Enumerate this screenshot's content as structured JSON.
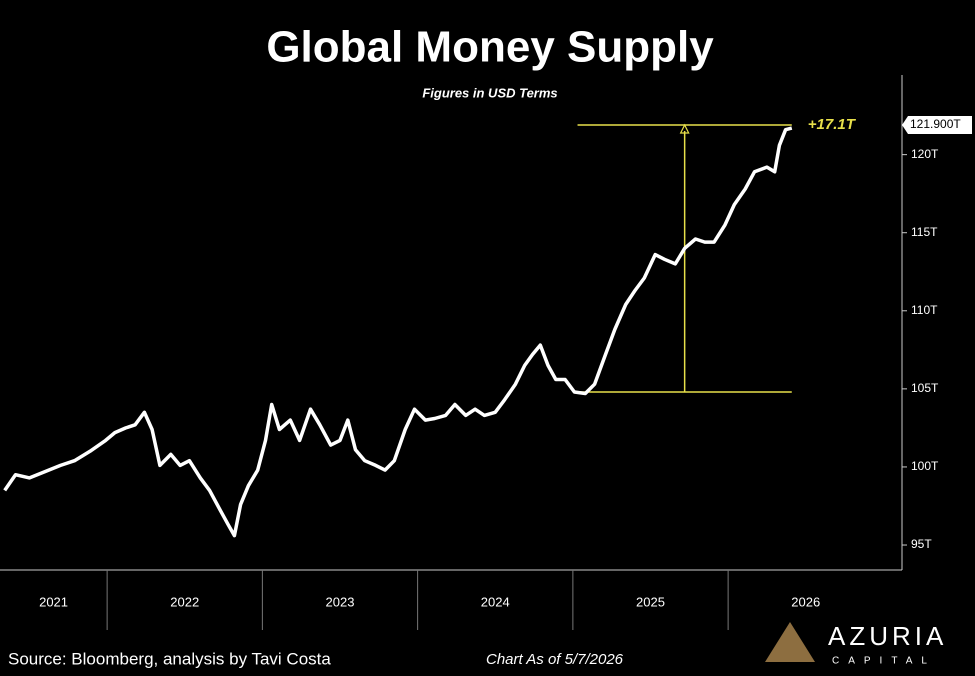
{
  "chart_data": {
    "type": "line",
    "title": "Global Money Supply",
    "subtitle": "Figures in USD Terms",
    "source": "Source: Bloomberg, analysis by Tavi Costa",
    "as_of": "Chart As of 5/7/2026",
    "brand": {
      "name": "AZURIA",
      "sub": "CAPITAL"
    },
    "x": [
      2021.34,
      2021.41,
      2021.5,
      2021.6,
      2021.7,
      2021.79,
      2021.89,
      2021.99,
      2022.05,
      2022.12,
      2022.18,
      2022.24,
      2022.29,
      2022.34,
      2022.41,
      2022.47,
      2022.53,
      2022.6,
      2022.66,
      2022.73,
      2022.78,
      2022.82,
      2022.86,
      2022.91,
      2022.97,
      2023.02,
      2023.06,
      2023.11,
      2023.18,
      2023.24,
      2023.31,
      2023.37,
      2023.44,
      2023.5,
      2023.55,
      2023.6,
      2023.66,
      2023.73,
      2023.79,
      2023.85,
      2023.92,
      2023.98,
      2024.05,
      2024.11,
      2024.18,
      2024.24,
      2024.31,
      2024.37,
      2024.43,
      2024.5,
      2024.56,
      2024.63,
      2024.69,
      2024.74,
      2024.79,
      2024.84,
      2024.89,
      2024.95,
      2025.01,
      2025.08,
      2025.14,
      2025.21,
      2025.27,
      2025.34,
      2025.4,
      2025.46,
      2025.53,
      2025.59,
      2025.66,
      2025.72,
      2025.79,
      2025.85,
      2025.91,
      2025.98,
      2026.04,
      2026.11,
      2026.17,
      2026.25,
      2026.3,
      2026.33,
      2026.37,
      2026.41
    ],
    "series": [
      {
        "color": "#ffffff",
        "values": [
          98.5,
          99.5,
          99.3,
          99.7,
          100.1,
          100.4,
          101.0,
          101.7,
          102.2,
          102.5,
          102.7,
          103.5,
          102.4,
          100.1,
          100.8,
          100.1,
          100.4,
          99.3,
          98.5,
          97.2,
          96.3,
          95.6,
          97.6,
          98.8,
          99.8,
          101.7,
          104.0,
          102.4,
          103.0,
          101.7,
          103.7,
          102.7,
          101.4,
          101.7,
          103.0,
          101.1,
          100.4,
          100.1,
          99.8,
          100.4,
          102.4,
          103.7,
          103.0,
          103.1,
          103.3,
          104.0,
          103.3,
          103.7,
          103.3,
          103.5,
          104.3,
          105.3,
          106.5,
          107.2,
          107.8,
          106.5,
          105.6,
          105.6,
          104.8,
          104.7,
          105.3,
          107.2,
          108.8,
          110.4,
          111.3,
          112.1,
          113.6,
          113.3,
          113.0,
          114.0,
          114.6,
          114.4,
          114.4,
          115.5,
          116.8,
          117.8,
          118.9,
          119.2,
          118.9,
          120.6,
          121.6,
          121.7
        ]
      }
    ],
    "xlim": [
      2021.31,
      2027.12
    ],
    "xticks": [
      {
        "value": 2021,
        "label": "2021"
      },
      {
        "value": 2022,
        "label": "2022"
      },
      {
        "value": 2023,
        "label": "2023"
      },
      {
        "value": 2024,
        "label": "2024"
      },
      {
        "value": 2025,
        "label": "2025"
      },
      {
        "value": 2026,
        "label": "2026"
      }
    ],
    "ylim": [
      93.4,
      125.1
    ],
    "yticks": [
      {
        "value": 95,
        "label": "95T"
      },
      {
        "value": 100,
        "label": "100T"
      },
      {
        "value": 105,
        "label": "105T"
      },
      {
        "value": 110,
        "label": "110T"
      },
      {
        "value": 115,
        "label": "115T"
      },
      {
        "value": 120,
        "label": "120T"
      }
    ],
    "end_label": {
      "value": 121.9,
      "label": "121.900T"
    },
    "annotation": {
      "text": "+17.1T",
      "color": "#e8e04a",
      "low": 104.8,
      "high": 121.9,
      "x": 2025.72,
      "x_range": [
        2025.03,
        2026.41
      ]
    }
  }
}
